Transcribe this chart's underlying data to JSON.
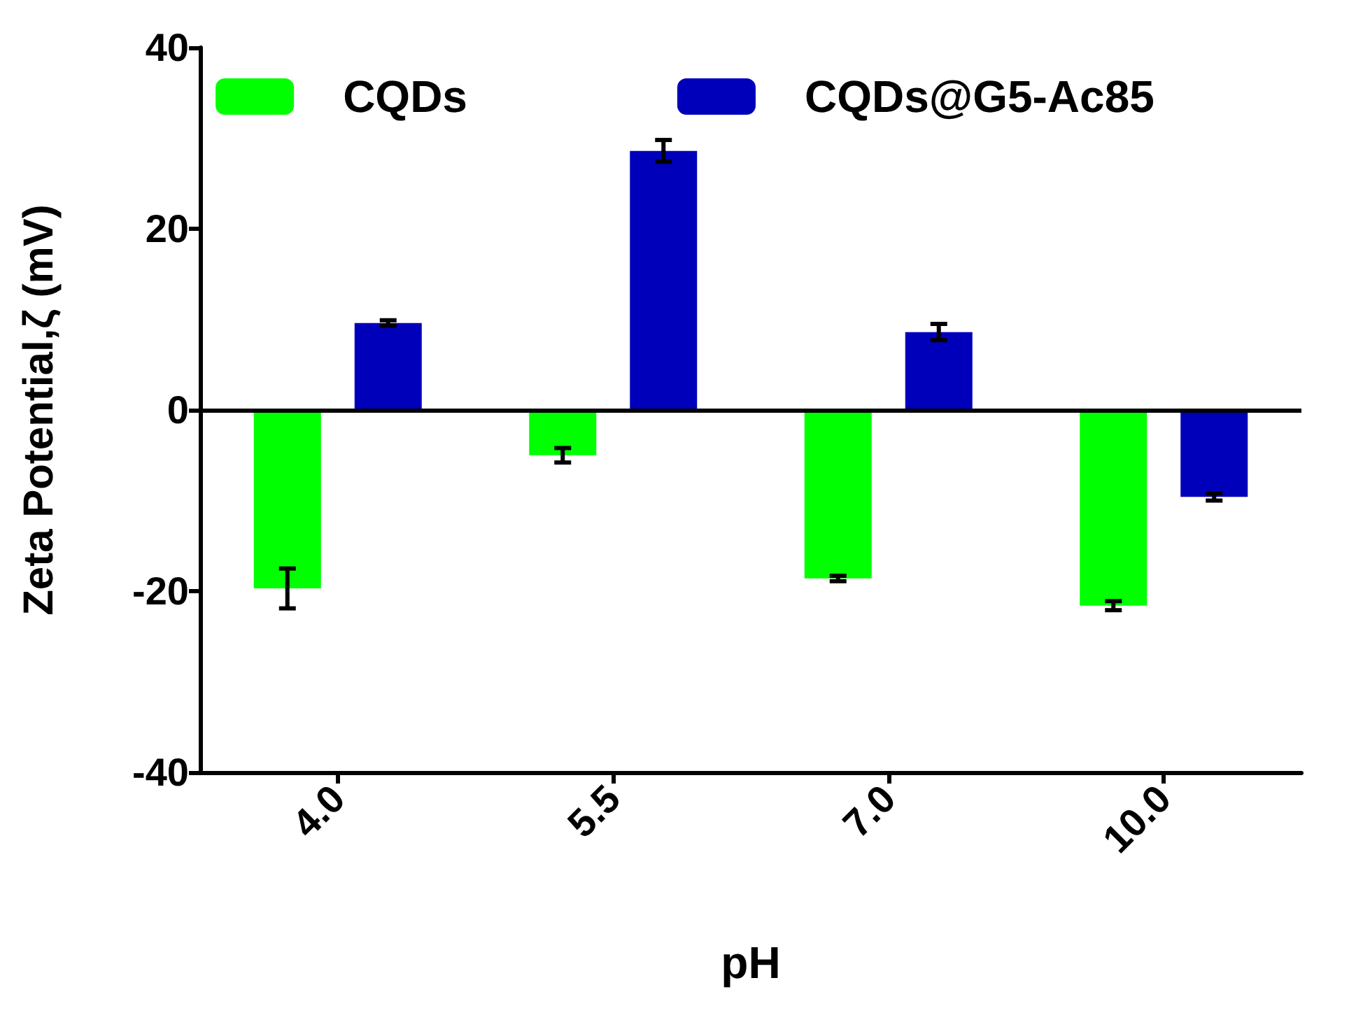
{
  "chart_data": {
    "type": "bar",
    "xlabel": "pH",
    "ylabel": "Zeta Potential,ζ (mV)",
    "categories": [
      "4.0",
      "5.5",
      "7.0",
      "10.0"
    ],
    "series": [
      {
        "name": "CQDs",
        "color": "#00ff00",
        "values": [
          -19.7,
          -5.0,
          -18.6,
          -21.6
        ],
        "errors": [
          2.2,
          0.8,
          0.3,
          0.5
        ]
      },
      {
        "name": "CQDs@G5-Ac85",
        "color": "#0000bb",
        "values": [
          9.6,
          28.6,
          8.6,
          -9.6
        ],
        "errors": [
          0.3,
          1.2,
          0.9,
          0.4
        ]
      }
    ],
    "ylim": [
      -40,
      40
    ],
    "yticks": [
      -40,
      -20,
      0,
      20,
      40
    ],
    "ref_lines": [
      {
        "axis": "y",
        "value": 0
      }
    ],
    "grid": false,
    "legend": "top"
  }
}
